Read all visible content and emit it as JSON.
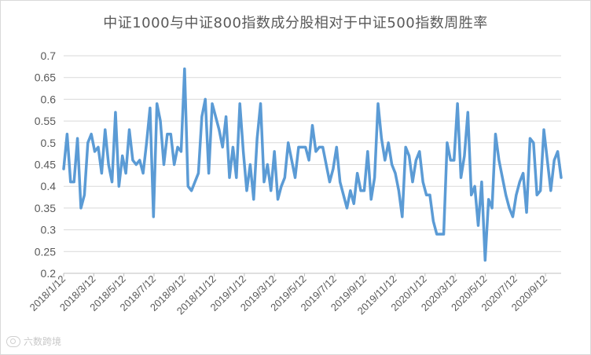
{
  "chart_data": {
    "type": "line",
    "title": "中证1000与中证800指数成分股相对于中证500指数周胜率",
    "xlabel": "",
    "ylabel": "",
    "ylim": [
      0.2,
      0.7
    ],
    "yticks": [
      "0.2",
      "0.25",
      "0.3",
      "0.35",
      "0.4",
      "0.45",
      "0.5",
      "0.55",
      "0.6",
      "0.65",
      "0.7"
    ],
    "xticks": [
      "2018/1/12",
      "2018/3/12",
      "2018/5/12",
      "2018/7/12",
      "2018/9/12",
      "2018/11/12",
      "2019/1/12",
      "2019/3/12",
      "2019/5/12",
      "2019/7/12",
      "2019/9/12",
      "2019/11/12",
      "2020/1/12",
      "2020/3/12",
      "2020/5/12",
      "2020/7/12",
      "2020/9/12"
    ],
    "grid": "horizontal",
    "legend": "none",
    "line_color": "#5B9BD5",
    "series": [
      {
        "values": [
          0.44,
          0.52,
          0.41,
          0.41,
          0.51,
          0.35,
          0.38,
          0.5,
          0.52,
          0.48,
          0.49,
          0.43,
          0.53,
          0.45,
          0.41,
          0.57,
          0.4,
          0.47,
          0.43,
          0.53,
          0.46,
          0.45,
          0.46,
          0.43,
          0.5,
          0.58,
          0.33,
          0.59,
          0.55,
          0.45,
          0.52,
          0.52,
          0.45,
          0.49,
          0.48,
          0.67,
          0.4,
          0.39,
          0.41,
          0.43,
          0.56,
          0.6,
          0.43,
          0.59,
          0.56,
          0.53,
          0.49,
          0.56,
          0.42,
          0.49,
          0.42,
          0.59,
          0.48,
          0.39,
          0.45,
          0.37,
          0.51,
          0.59,
          0.41,
          0.45,
          0.39,
          0.48,
          0.37,
          0.4,
          0.42,
          0.5,
          0.46,
          0.42,
          0.49,
          0.49,
          0.49,
          0.46,
          0.54,
          0.48,
          0.49,
          0.49,
          0.45,
          0.41,
          0.44,
          0.49,
          0.41,
          0.38,
          0.35,
          0.39,
          0.36,
          0.43,
          0.39,
          0.39,
          0.48,
          0.37,
          0.42,
          0.59,
          0.51,
          0.46,
          0.5,
          0.45,
          0.43,
          0.39,
          0.33,
          0.49,
          0.47,
          0.41,
          0.46,
          0.48,
          0.41,
          0.38,
          0.38,
          0.32,
          0.29,
          0.29,
          0.29,
          0.5,
          0.46,
          0.46,
          0.59,
          0.42,
          0.47,
          0.57,
          0.38,
          0.4,
          0.31,
          0.41,
          0.23,
          0.37,
          0.35,
          0.52,
          0.46,
          0.42,
          0.38,
          0.35,
          0.33,
          0.38,
          0.41,
          0.43,
          0.34,
          0.51,
          0.5,
          0.38,
          0.39,
          0.53,
          0.46,
          0.39,
          0.46,
          0.48,
          0.42
        ]
      }
    ]
  },
  "watermark": {
    "text": "六数跨境",
    "icon": "camera-lens-icon"
  }
}
